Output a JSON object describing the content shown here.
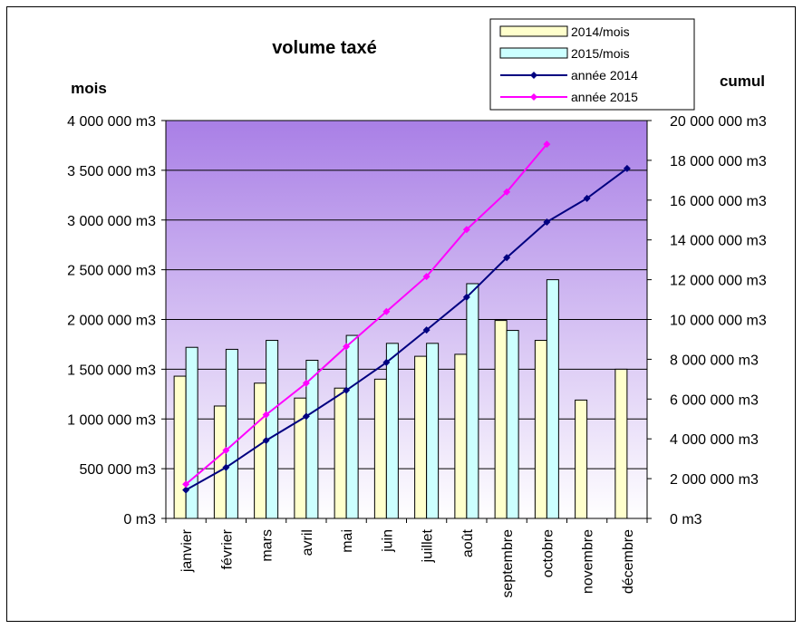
{
  "chart_data": {
    "type": "bar",
    "title": "volume taxé",
    "ylabel": "mois",
    "y2label": "cumul",
    "unit": "m3",
    "ylim": [
      0,
      4000000
    ],
    "y2lim": [
      0,
      20000000
    ],
    "yticks": [
      "0 m3",
      "500 000 m3",
      "1 000 000 m3",
      "1 500 000 m3",
      "2 000 000 m3",
      "2 500 000 m3",
      "3 000 000 m3",
      "3 500 000 m3",
      "4 000 000 m3"
    ],
    "y2ticks": [
      "0 m3",
      "2 000 000 m3",
      "4 000 000 m3",
      "6 000 000 m3",
      "8 000 000 m3",
      "10 000 000 m3",
      "12 000 000 m3",
      "14 000 000 m3",
      "16 000 000 m3",
      "18 000 000 m3",
      "20 000 000 m3"
    ],
    "categories": [
      "janvier",
      "février",
      "mars",
      "avril",
      "mai",
      "juin",
      "juillet",
      "août",
      "septembre",
      "octobre",
      "novembre",
      "décembre"
    ],
    "grid": true,
    "legend_position": "top-right",
    "series": [
      {
        "name": "2014/mois",
        "kind": "bar",
        "axis": "left",
        "color": "#FFFFCC",
        "values": [
          1430000,
          1130000,
          1360000,
          1210000,
          1310000,
          1400000,
          1630000,
          1650000,
          1990000,
          1790000,
          1190000,
          1500000
        ]
      },
      {
        "name": "2015/mois",
        "kind": "bar",
        "axis": "left",
        "color": "#CCFFFF",
        "values": [
          1720000,
          1700000,
          1790000,
          1590000,
          1840000,
          1760000,
          1760000,
          2360000,
          1890000,
          2400000,
          null,
          null
        ]
      },
      {
        "name": "année 2014",
        "kind": "line",
        "axis": "right",
        "color": "#000080",
        "values": [
          1430000,
          2560000,
          3920000,
          5130000,
          6440000,
          7840000,
          9470000,
          11120000,
          13110000,
          14900000,
          16090000,
          17590000
        ]
      },
      {
        "name": "année 2015",
        "kind": "line",
        "axis": "right",
        "color": "#FF00FF",
        "values": [
          1720000,
          3420000,
          5210000,
          6800000,
          8640000,
          10400000,
          12160000,
          14520000,
          16410000,
          18810000,
          null,
          null
        ]
      }
    ]
  }
}
